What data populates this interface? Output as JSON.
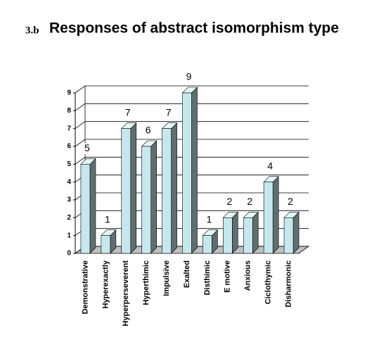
{
  "chart_data": {
    "type": "bar3d",
    "figure_number": "3.b",
    "title": "Responses of abstract isomorphism type",
    "categories": [
      "Demonstrative",
      "Hyperexactly",
      "Hyperperseverent",
      "Hyperthimic",
      "Impulsive",
      "Exalted",
      "Disthimic",
      "E motive",
      "Anxious",
      "Ciclothymic",
      "Disharmonic"
    ],
    "values": [
      5,
      1,
      7,
      6,
      7,
      9,
      1,
      2,
      2,
      4,
      2
    ],
    "color": "#c6e8ec",
    "ylim": [
      0,
      9
    ],
    "yticks": [
      0,
      1,
      2,
      3,
      4,
      5,
      6,
      7,
      8,
      9
    ],
    "grid": true
  }
}
